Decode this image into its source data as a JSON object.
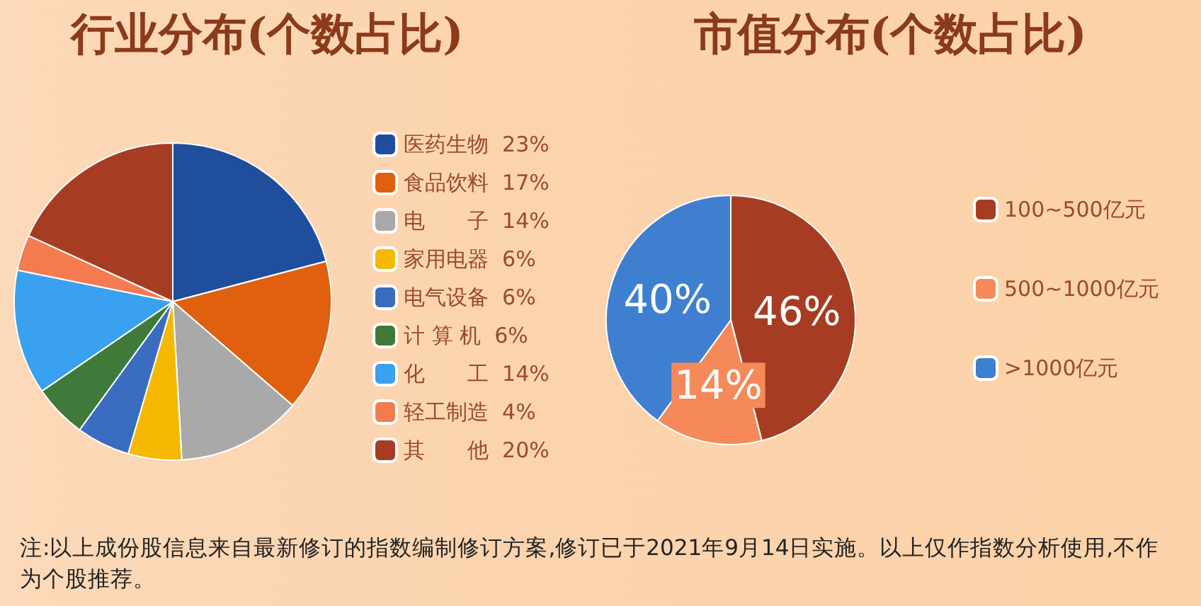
{
  "chart_data": [
    {
      "type": "pie",
      "title": "行业分布(个数占比)",
      "categories": [
        "医药生物",
        "食品饮料",
        "电　　子",
        "家用电器",
        "电气设备",
        "计 算 机",
        "化　　工",
        "轻工制造",
        "其　　他"
      ],
      "values": [
        23,
        17,
        14,
        6,
        6,
        6,
        14,
        4,
        20
      ],
      "value_labels": [
        "23%",
        "17%",
        "14%",
        "6%",
        "6%",
        "6%",
        "14%",
        "4%",
        "20%"
      ],
      "colors": [
        "#1f4e9c",
        "#e0600f",
        "#a9a9a9",
        "#f5b800",
        "#3a6cc0",
        "#3f7a3a",
        "#3aa0f0",
        "#f47a50",
        "#a63d22"
      ],
      "legend": "right",
      "annotations": [
        "注:以上成份股信息来自最新修订的指数编制修订方案,修订已于2021年9月14日实施。以上仅作指数分析使用,不作为个股推荐。"
      ]
    },
    {
      "type": "pie",
      "title": "市值分布(个数占比)",
      "categories": [
        "100~500亿元",
        "500~1000亿元",
        ">1000亿元"
      ],
      "values": [
        46,
        14,
        40
      ],
      "value_labels": [
        "46%",
        "14%",
        "40%"
      ],
      "colors": [
        "#a63d22",
        "#f5895a",
        "#3f7fd0"
      ],
      "legend": "right"
    }
  ]
}
